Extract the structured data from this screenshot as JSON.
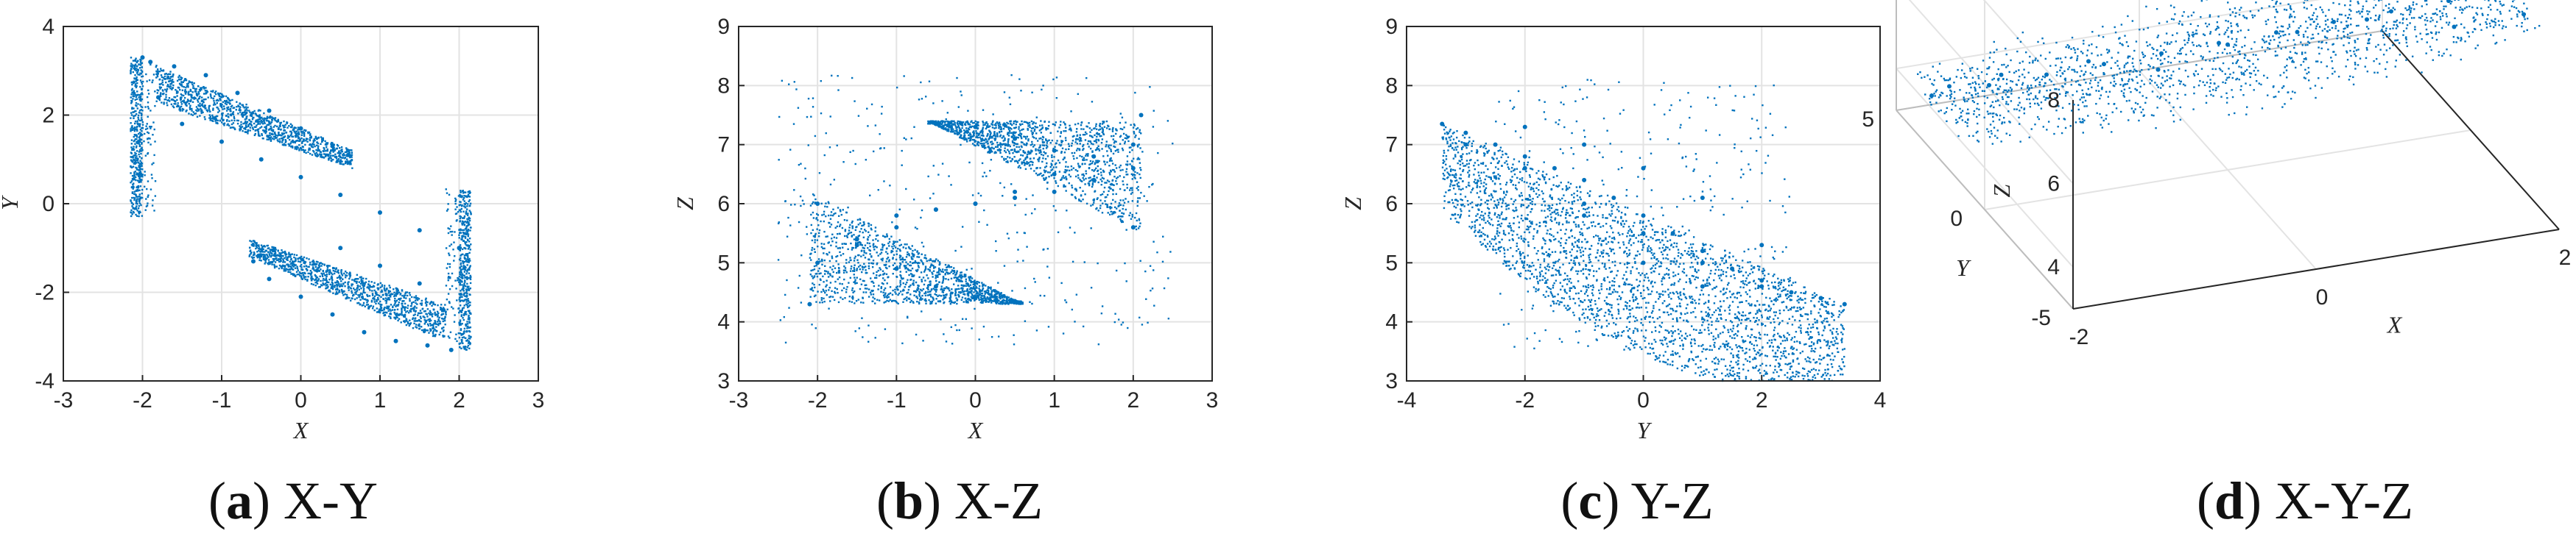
{
  "accent_color": "#0072BD",
  "panels": [
    {
      "letter": "a",
      "title": "X-Y"
    },
    {
      "letter": "b",
      "title": "X-Z"
    },
    {
      "letter": "c",
      "title": "Y-Z"
    },
    {
      "letter": "d",
      "title": "X-Y-Z"
    }
  ],
  "chart_data": [
    {
      "type": "scatter",
      "xlabel": "X",
      "ylabel": "Y",
      "xlim": [
        -3,
        3
      ],
      "ylim": [
        -4,
        4
      ],
      "xticks": [
        "-3",
        "-2",
        "-1",
        "0",
        "1",
        "2",
        "3"
      ],
      "yticks": [
        "-4",
        "-2",
        "0",
        "2",
        "4"
      ],
      "grid": true,
      "series": [
        {
          "color": "#0072BD",
          "x": [
            -2.0,
            -1.9,
            -1.6,
            -1.2,
            -0.8,
            -0.4,
            0.0,
            0.4,
            0.6,
            -1.8,
            -1.5,
            -1.0,
            -0.5,
            0.0,
            0.5,
            1.0,
            1.5,
            2.0,
            1.9,
            1.6,
            1.2,
            0.8,
            0.4,
            0.0,
            -0.4,
            -0.6,
            1.8,
            1.5,
            1.0,
            0.5
          ],
          "y": [
            3.3,
            3.2,
            3.1,
            2.9,
            2.5,
            2.1,
            1.7,
            1.3,
            1.1,
            2.4,
            1.8,
            1.4,
            1.0,
            0.6,
            0.2,
            -0.2,
            -0.6,
            -1.0,
            -3.3,
            -3.2,
            -3.1,
            -2.9,
            -2.5,
            -2.1,
            -1.7,
            -1.3,
            -2.4,
            -1.8,
            -1.4,
            -1.0
          ]
        }
      ]
    },
    {
      "type": "scatter",
      "xlabel": "X",
      "ylabel": "Z",
      "xlim": [
        -3,
        3
      ],
      "ylim": [
        3,
        9
      ],
      "xticks": [
        "-3",
        "-2",
        "-1",
        "0",
        "1",
        "2",
        "3"
      ],
      "yticks": [
        "3",
        "4",
        "5",
        "6",
        "7",
        "8",
        "9"
      ],
      "grid": true,
      "series": [
        {
          "color": "#0072BD",
          "x": [
            -2.1,
            -2.0,
            -1.5,
            -1.0,
            -0.5,
            0.0,
            0.5,
            -2.0,
            -1.5,
            -1.0,
            -0.5,
            0.0,
            0.5,
            1.0,
            1.5,
            2.0,
            2.1,
            2.0,
            1.5,
            1.0,
            0.5,
            0.0,
            -0.5,
            2.0,
            1.5,
            1.0,
            0.5,
            0.0,
            -0.5,
            -1.0
          ],
          "y": [
            4.3,
            6.0,
            5.4,
            4.9,
            4.6,
            4.4,
            4.35,
            5.0,
            5.3,
            5.6,
            5.9,
            6.0,
            6.1,
            6.2,
            6.4,
            6.6,
            7.5,
            5.6,
            6.4,
            6.9,
            7.1,
            7.3,
            7.35,
            7.0,
            6.8,
            6.5,
            6.2,
            6.0,
            5.9,
            5.8
          ]
        }
      ]
    },
    {
      "type": "scatter",
      "xlabel": "Y",
      "ylabel": "Z",
      "xlim": [
        -4,
        4
      ],
      "ylim": [
        3,
        9
      ],
      "xticks": [
        "-4",
        "-2",
        "0",
        "2",
        "4"
      ],
      "yticks": [
        "3",
        "4",
        "5",
        "6",
        "7",
        "8",
        "9"
      ],
      "grid": true,
      "series": [
        {
          "color": "#0072BD",
          "x": [
            -3.4,
            -3.0,
            -2.5,
            -2.0,
            -1.5,
            -1.0,
            -0.5,
            0.0,
            0.5,
            1.0,
            1.5,
            2.0,
            2.5,
            3.0,
            3.4,
            -3.0,
            -2.0,
            -1.0,
            0.0,
            1.0,
            2.0,
            3.0,
            -2.0,
            -1.0,
            0.0,
            1.0,
            2.0,
            1.0,
            0.0,
            -1.0
          ],
          "y": [
            7.35,
            7.2,
            7.0,
            6.8,
            6.6,
            6.4,
            6.1,
            5.8,
            5.5,
            5.2,
            4.9,
            4.7,
            4.5,
            4.4,
            4.3,
            7.0,
            6.6,
            6.0,
            5.5,
            5.0,
            4.6,
            4.4,
            7.3,
            7.0,
            6.6,
            6.1,
            5.3,
            4.6,
            5.0,
            5.8
          ]
        }
      ]
    },
    {
      "type": "scatter3d",
      "xlabel": "X",
      "ylabel": "Y",
      "zlabel": "Z",
      "xlim": [
        -2,
        2
      ],
      "ylim": [
        -5,
        5
      ],
      "zlim": [
        3,
        8
      ],
      "xticks": [
        "-2",
        "0",
        "2"
      ],
      "yticks": [
        "-5",
        "0",
        "5"
      ],
      "zticks": [
        "4",
        "6",
        "8"
      ],
      "grid": true,
      "series": [
        {
          "color": "#0072BD",
          "x": [
            -2.0,
            -1.6,
            -1.2,
            -0.8,
            -0.4,
            0.0,
            0.4,
            0.8,
            1.2,
            1.6,
            2.0,
            -2.0,
            -1.0,
            0.0,
            1.0,
            2.0,
            -1.5,
            -0.5,
            0.5,
            1.5
          ],
          "y": [
            3.0,
            2.5,
            2.0,
            1.5,
            1.0,
            0.5,
            0.0,
            -0.5,
            -1.0,
            -1.5,
            -2.0,
            2.0,
            1.0,
            0.0,
            -1.0,
            -3.0,
            2.5,
            0.5,
            -0.5,
            -2.5
          ],
          "z": [
            4.3,
            4.6,
            4.9,
            5.2,
            5.5,
            5.8,
            6.1,
            6.4,
            6.7,
            7.0,
            7.4,
            5.0,
            5.6,
            6.0,
            6.6,
            7.2,
            4.8,
            5.4,
            6.3,
            6.9
          ]
        }
      ]
    }
  ]
}
